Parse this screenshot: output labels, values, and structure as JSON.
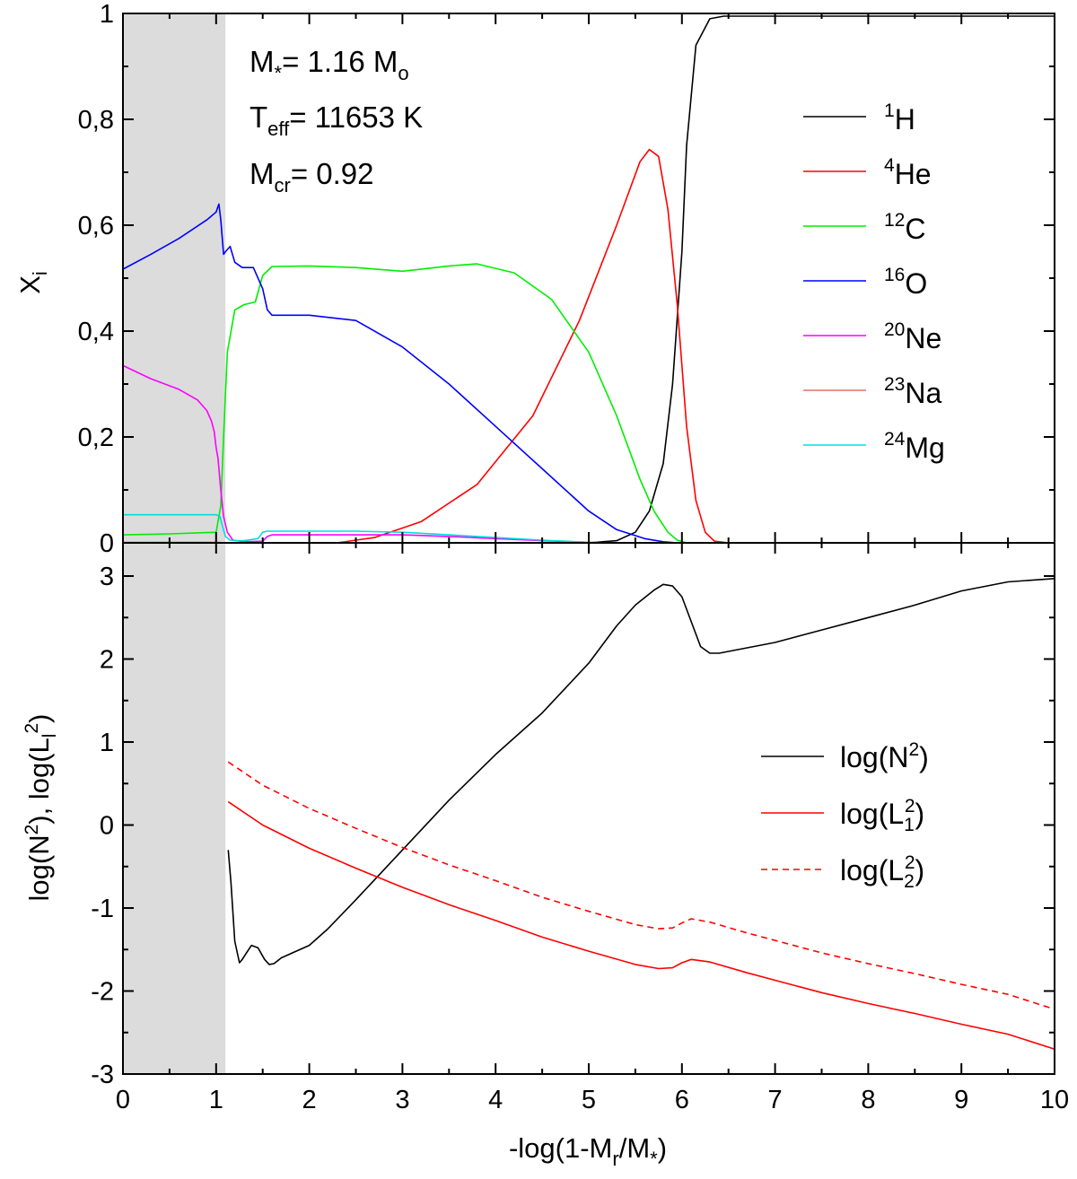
{
  "chart_data": [
    {
      "type": "line",
      "panel": "top",
      "ylabel": "X",
      "ylabel_sub": "i",
      "xlim": [
        0,
        10
      ],
      "ylim": [
        0,
        1
      ],
      "yticks": [
        "0",
        "0,2",
        "0,4",
        "0,6",
        "0,8",
        "1"
      ],
      "xticks": [
        "0",
        "1",
        "2",
        "3",
        "4",
        "5",
        "6",
        "7",
        "8",
        "9",
        "10"
      ],
      "grid": false,
      "shaded_region": [
        0,
        1.1
      ],
      "annotations": {
        "mstar": {
          "pre": "M",
          "sub1": "*",
          "mid": "= 1.16 M",
          "sub2": "o"
        },
        "teff": {
          "pre": "T",
          "sub1": "eff",
          "mid": "= 11653 K"
        },
        "mcr": {
          "pre": "M",
          "sub1": "cr",
          "mid": "= 0.92"
        }
      },
      "legend_position": "right",
      "series": [
        {
          "name_sup": "1",
          "name_base": "H",
          "color": "#000000",
          "x": [
            0,
            5.0,
            5.3,
            5.5,
            5.65,
            5.8,
            5.9,
            6.0,
            6.05,
            6.15,
            6.3,
            6.45,
            10
          ],
          "y": [
            0,
            0,
            0.004,
            0.02,
            0.06,
            0.15,
            0.3,
            0.55,
            0.75,
            0.94,
            0.99,
            0.995,
            0.995
          ]
        },
        {
          "name_sup": "4",
          "name_base": "He",
          "color": "#ff0000",
          "x": [
            0,
            2.3,
            2.7,
            3.2,
            3.8,
            4.4,
            4.9,
            5.3,
            5.55,
            5.65,
            5.75,
            5.85,
            5.95,
            6.05,
            6.15,
            6.25,
            6.35,
            6.5,
            10
          ],
          "y": [
            0,
            0,
            0.01,
            0.04,
            0.11,
            0.24,
            0.42,
            0.6,
            0.72,
            0.743,
            0.73,
            0.63,
            0.45,
            0.22,
            0.08,
            0.02,
            0.003,
            0,
            0
          ]
        },
        {
          "name_sup": "12",
          "name_base": "C",
          "color": "#00ee00",
          "x": [
            0,
            0.5,
            1.0,
            1.05,
            1.08,
            1.12,
            1.2,
            1.3,
            1.42,
            1.5,
            1.6,
            2.0,
            2.5,
            3.0,
            3.5,
            3.8,
            4.2,
            4.6,
            5.0,
            5.3,
            5.55,
            5.7,
            5.85,
            5.95,
            6.05,
            10
          ],
          "y": [
            0.015,
            0.017,
            0.02,
            0.07,
            0.2,
            0.36,
            0.44,
            0.45,
            0.455,
            0.505,
            0.522,
            0.523,
            0.52,
            0.513,
            0.523,
            0.527,
            0.51,
            0.46,
            0.36,
            0.24,
            0.12,
            0.06,
            0.02,
            0.005,
            0,
            0
          ]
        },
        {
          "name_sup": "16",
          "name_base": "O",
          "color": "#0000ff",
          "x": [
            0,
            0.3,
            0.6,
            0.9,
            1.0,
            1.03,
            1.05,
            1.08,
            1.1,
            1.15,
            1.2,
            1.28,
            1.4,
            1.5,
            1.55,
            1.6,
            2.0,
            2.5,
            3.0,
            3.5,
            4.0,
            4.5,
            5.0,
            5.3,
            5.6,
            5.8,
            5.95,
            10
          ],
          "y": [
            0.517,
            0.545,
            0.575,
            0.61,
            0.625,
            0.64,
            0.61,
            0.545,
            0.55,
            0.56,
            0.53,
            0.52,
            0.52,
            0.48,
            0.44,
            0.43,
            0.43,
            0.42,
            0.37,
            0.3,
            0.22,
            0.14,
            0.06,
            0.025,
            0.008,
            0.002,
            0,
            0
          ]
        },
        {
          "name_sup": "20",
          "name_base": "Ne",
          "color": "#ff00ff",
          "x": [
            0,
            0.3,
            0.6,
            0.8,
            0.9,
            0.95,
            0.98,
            1.0,
            1.02,
            1.05,
            1.08,
            1.12,
            1.18,
            1.3,
            1.5,
            1.55,
            1.6,
            2.0,
            2.5,
            3.0,
            3.5,
            4.0,
            4.5,
            5.0,
            5.2,
            10
          ],
          "y": [
            0.335,
            0.31,
            0.29,
            0.27,
            0.25,
            0.23,
            0.21,
            0.18,
            0.16,
            0.1,
            0.05,
            0.02,
            0.005,
            0.002,
            0.003,
            0.012,
            0.015,
            0.015,
            0.015,
            0.015,
            0.012,
            0.008,
            0.004,
            0.001,
            0,
            0
          ]
        },
        {
          "name_sup": "23",
          "name_base": "Na",
          "color": "#e07070",
          "x": [
            0,
            1.0,
            1.1,
            10
          ],
          "y": [
            0.001,
            0.001,
            0,
            0
          ]
        },
        {
          "name_sup": "24",
          "name_base": "Mg",
          "color": "#00dddd",
          "x": [
            0,
            0.9,
            1.0,
            1.04,
            1.07,
            1.1,
            1.15,
            1.2,
            1.3,
            1.45,
            1.5,
            1.55,
            2.0,
            2.5,
            3.0,
            3.5,
            4.0,
            4.5,
            5.0,
            5.2,
            10
          ],
          "y": [
            0.053,
            0.053,
            0.053,
            0.05,
            0.03,
            0.012,
            0.005,
            0.004,
            0.004,
            0.008,
            0.02,
            0.022,
            0.022,
            0.022,
            0.02,
            0.015,
            0.01,
            0.005,
            0.001,
            0,
            0
          ]
        }
      ]
    },
    {
      "type": "line",
      "panel": "bottom",
      "xlabel": "-log(1-M",
      "xlabel_sub1": "r",
      "xlabel_mid": "/M",
      "xlabel_sub2": "*",
      "xlabel_end": ")",
      "ylabel": "log(N²), log(Lₗ²)",
      "xlim": [
        0,
        10
      ],
      "ylim": [
        -3,
        3.4
      ],
      "yticks": [
        "-3",
        "-2",
        "-1",
        "0",
        "1",
        "2",
        "3"
      ],
      "grid": false,
      "legend_position": "right",
      "series": [
        {
          "name": "log(N²)",
          "color": "#000000",
          "dash": "solid",
          "x": [
            1.13,
            1.16,
            1.2,
            1.25,
            1.28,
            1.32,
            1.38,
            1.45,
            1.52,
            1.57,
            1.62,
            1.7,
            1.8,
            2.0,
            2.2,
            2.5,
            3.0,
            3.5,
            4.0,
            4.5,
            5.0,
            5.3,
            5.5,
            5.7,
            5.8,
            5.9,
            6.0,
            6.1,
            6.2,
            6.3,
            6.4,
            7.0,
            7.5,
            8.0,
            8.5,
            9.0,
            9.5,
            10.0
          ],
          "y": [
            -0.3,
            -0.7,
            -1.4,
            -1.66,
            -1.62,
            -1.55,
            -1.45,
            -1.48,
            -1.62,
            -1.68,
            -1.67,
            -1.6,
            -1.55,
            -1.45,
            -1.25,
            -0.9,
            -0.3,
            0.3,
            0.85,
            1.35,
            1.95,
            2.4,
            2.65,
            2.83,
            2.9,
            2.88,
            2.75,
            2.45,
            2.15,
            2.07,
            2.07,
            2.2,
            2.35,
            2.5,
            2.65,
            2.82,
            2.93,
            2.97
          ]
        },
        {
          "name": "log(L₁²)",
          "color": "#ff0000",
          "dash": "solid",
          "x": [
            1.13,
            1.5,
            2.0,
            2.5,
            3.0,
            3.5,
            4.0,
            4.5,
            5.0,
            5.5,
            5.75,
            5.9,
            6.0,
            6.1,
            6.3,
            6.7,
            7.0,
            7.5,
            8.0,
            8.5,
            9.0,
            9.5,
            10.0
          ],
          "y": [
            0.28,
            0.0,
            -0.28,
            -0.52,
            -0.75,
            -0.96,
            -1.15,
            -1.35,
            -1.52,
            -1.68,
            -1.73,
            -1.72,
            -1.66,
            -1.62,
            -1.65,
            -1.78,
            -1.87,
            -2.02,
            -2.15,
            -2.27,
            -2.4,
            -2.52,
            -2.7
          ]
        },
        {
          "name": "log(L₂²)",
          "color": "#ff0000",
          "dash": "dashed",
          "x": [
            1.13,
            1.5,
            2.0,
            2.5,
            3.0,
            3.5,
            4.0,
            4.5,
            5.0,
            5.5,
            5.75,
            5.9,
            6.0,
            6.1,
            6.3,
            6.7,
            7.0,
            7.5,
            8.0,
            8.5,
            9.0,
            9.5,
            10.0
          ],
          "y": [
            0.76,
            0.48,
            0.2,
            -0.04,
            -0.27,
            -0.48,
            -0.67,
            -0.87,
            -1.04,
            -1.2,
            -1.25,
            -1.24,
            -1.18,
            -1.13,
            -1.17,
            -1.3,
            -1.39,
            -1.54,
            -1.67,
            -1.79,
            -1.92,
            -2.04,
            -2.22
          ]
        }
      ]
    }
  ]
}
